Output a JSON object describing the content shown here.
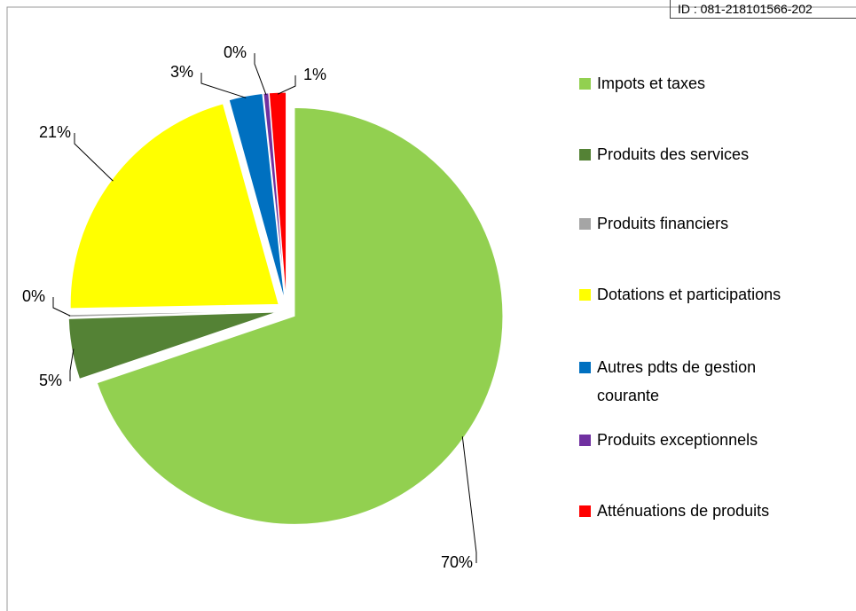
{
  "header": {
    "id": "ID : 081-218101566-202"
  },
  "chart_data": {
    "type": "pie",
    "categories": [
      "Impots et taxes",
      "Produits des services",
      "Produits financiers",
      "Dotations et participations",
      "Autres pdts de gestion courante",
      "Produits exceptionnels",
      "Atténuations de produits"
    ],
    "values": [
      69.8,
      4.7,
      0.2,
      21.0,
      2.6,
      0.4,
      1.3
    ],
    "value_labels": [
      "70%",
      "5%",
      "0%",
      "21%",
      "3%",
      "0%",
      "1%"
    ],
    "colors": [
      "#92d050",
      "#548235",
      "#a5a5a5",
      "#ffff00",
      "#0070c0",
      "#7030a0",
      "#ff0000"
    ],
    "legend": "right"
  }
}
